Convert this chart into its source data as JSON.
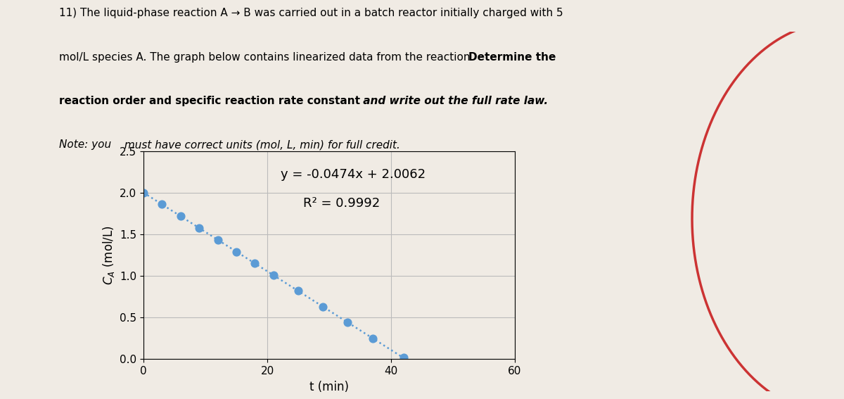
{
  "xlabel": "t (min)",
  "ylabel": "$C_A$ (mol/L)",
  "slope": -0.0474,
  "intercept": 2.0062,
  "eq_label": "y = -0.0474x + 2.0062",
  "r2_label": "R² = 0.9992",
  "x_data": [
    0,
    3,
    6,
    9,
    12,
    15,
    18,
    21,
    25,
    29,
    33,
    37,
    42
  ],
  "xlim": [
    0,
    60
  ],
  "ylim": [
    0,
    2.5
  ],
  "yticks": [
    0,
    0.5,
    1,
    1.5,
    2,
    2.5
  ],
  "xticks": [
    0,
    20,
    40,
    60
  ],
  "dot_color": "#5B9BD5",
  "line_color": "#5B9BD5",
  "background_color": "#f0ebe4",
  "plot_bg_color": "#f0ebe4",
  "grid_color": "#bbbbbb",
  "label_fontsize": 12,
  "tick_fontsize": 11,
  "annotation_fontsize": 13,
  "arc_color": "#cc3333",
  "line1": "11) The liquid-phase reaction A → B was carried out in a batch reactor initially charged with 5",
  "line2_normal": "mol/L species A. The graph below contains linearized data from the reaction. ",
  "line2_bold": "Determine the",
  "line3_bold": "reaction order and specific reaction rate constant",
  "line3_bold_italic": " and write out the full rate law.",
  "line4_italic_pre": "Note: you",
  "line4_italic": " must have correct units (mol, L, min) for full credit."
}
